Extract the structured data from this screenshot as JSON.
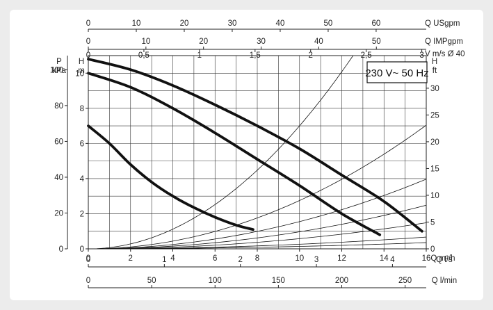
{
  "chart_data": {
    "type": "line",
    "title": "",
    "annotation": "230 V~ 50 Hz",
    "x_primary": {
      "label": "Q m³/h",
      "range": [
        0,
        16
      ],
      "ticks": [
        0,
        2,
        4,
        6,
        8,
        10,
        12,
        14,
        16
      ]
    },
    "y_primary": {
      "label": "H\nm",
      "range": [
        0,
        11
      ],
      "ticks": [
        0,
        2,
        4,
        6,
        8,
        10
      ]
    },
    "top_axes": [
      {
        "label": "Q USgpm",
        "ticks": [
          0,
          10,
          20,
          30,
          40,
          50,
          60
        ],
        "factor": 4.4029
      },
      {
        "label": "Q IMPgpm",
        "ticks": [
          0,
          10,
          20,
          30,
          40,
          50
        ],
        "factor": 3.6662
      },
      {
        "label": "V m/s Ø 40",
        "ticks": [
          "0",
          "0,5",
          "1",
          "1,5",
          "2",
          "2,5",
          "3"
        ],
        "tick_values": [
          0,
          0.5,
          1,
          1.5,
          2,
          2.5,
          3
        ],
        "factor": 0.19
      }
    ],
    "bottom_axes": [
      {
        "label": "Q l/s",
        "ticks": [
          0,
          1,
          2,
          3,
          4
        ],
        "factor": 0.27778
      },
      {
        "label": "Q l/min",
        "ticks": [
          0,
          50,
          100,
          150,
          200,
          250
        ],
        "factor": 16.667
      }
    ],
    "left_axis": {
      "label": "P\nkPa",
      "ticks": [
        0,
        20,
        40,
        60,
        80,
        100
      ],
      "factor": 9.81
    },
    "right_axis": {
      "label": "H\nft",
      "ticks": [
        0,
        5,
        10,
        15,
        20,
        25,
        30
      ],
      "factor": 3.2808
    },
    "system_curves_k": [
      0.07,
      0.0275,
      0.0155,
      0.0097,
      0.0058,
      0.00262,
      0.00138
    ],
    "series": [
      {
        "name": "",
        "x": [
          0,
          1,
          2,
          3,
          4,
          5,
          6,
          7,
          7.8
        ],
        "y": [
          7.0,
          6.0,
          4.8,
          3.8,
          3.0,
          2.35,
          1.8,
          1.35,
          1.1
        ]
      },
      {
        "name": "",
        "x": [
          0,
          2,
          4,
          6,
          8,
          10,
          12,
          13.8
        ],
        "y": [
          10.0,
          9.2,
          8.0,
          6.6,
          5.1,
          3.6,
          2.0,
          0.8
        ]
      },
      {
        "name": "",
        "x": [
          0,
          2,
          4,
          6,
          8,
          10,
          12,
          14,
          15.8
        ],
        "y": [
          10.8,
          10.2,
          9.3,
          8.2,
          7.0,
          5.7,
          4.2,
          2.7,
          1.0
        ]
      }
    ]
  }
}
